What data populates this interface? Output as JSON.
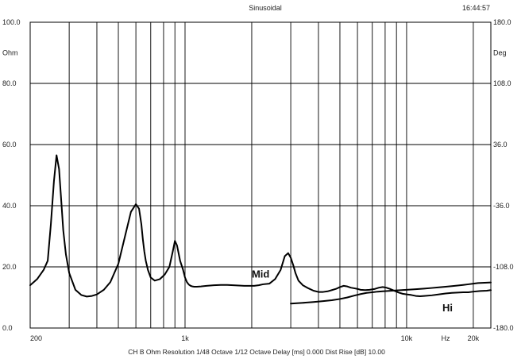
{
  "header": {
    "title": "Sinusoidal",
    "time": "16:44:57"
  },
  "footer": {
    "info": "CH B  Ohm  Resolution 1/48 Octave   1/12 Octave   Delay [ms] 0.000   Dist Rise [dB] 10.00"
  },
  "chart_data": {
    "type": "line",
    "title": "Sinusoidal",
    "xscale": "log",
    "xlim": [
      200,
      24000
    ],
    "ylim": [
      0,
      100
    ],
    "y2lim": [
      -180,
      180
    ],
    "ylabel": "Ohm",
    "y2label": "Deg",
    "xunit": "Hz",
    "x_tick_labels": [
      {
        "value": 200,
        "label": "200"
      },
      {
        "value": 1000,
        "label": "1k"
      },
      {
        "value": 10000,
        "label": "10k"
      },
      {
        "value": 15000,
        "label": "Hz"
      },
      {
        "value": 20000,
        "label": "20k"
      }
    ],
    "y_tick_labels": [
      {
        "value": 100,
        "label": "100.0"
      },
      {
        "value": 90,
        "label": "Ohm"
      },
      {
        "value": 80,
        "label": "80.0"
      },
      {
        "value": 60,
        "label": "60.0"
      },
      {
        "value": 40,
        "label": "40.0"
      },
      {
        "value": 20,
        "label": "20.0"
      },
      {
        "value": 0,
        "label": "0.0"
      }
    ],
    "y2_tick_labels": [
      {
        "value": 180,
        "label": "180.0"
      },
      {
        "value": 144,
        "label": "Deg"
      },
      {
        "value": 108,
        "label": "108.0"
      },
      {
        "value": 36,
        "label": "36.0"
      },
      {
        "value": -36,
        "label": "-36.0"
      },
      {
        "value": -108,
        "label": "-108.0"
      },
      {
        "value": -180,
        "label": "-180.0"
      }
    ],
    "x_gridlines": [
      200,
      300,
      400,
      500,
      600,
      700,
      800,
      900,
      1000,
      2000,
      3000,
      4000,
      5000,
      6000,
      7000,
      8000,
      9000,
      10000,
      20000
    ],
    "y_gridlines": [
      0,
      20,
      40,
      60,
      80,
      100
    ],
    "grid": true,
    "annotations": [
      {
        "text": "Mid",
        "x": 2000,
        "y": 16.5
      },
      {
        "text": "Hi",
        "x": 14500,
        "y": 5.5
      }
    ],
    "series": [
      {
        "name": "Mid",
        "x": [
          200,
          215,
          230,
          240,
          248,
          256,
          263,
          270,
          276,
          282,
          290,
          300,
          320,
          340,
          360,
          380,
          400,
          430,
          460,
          500,
          540,
          570,
          600,
          620,
          635,
          645,
          655,
          665,
          680,
          700,
          730,
          770,
          810,
          850,
          880,
          900,
          920,
          950,
          980,
          1000,
          1020,
          1040,
          1060,
          1080,
          1100,
          1130,
          1180,
          1250,
          1350,
          1450,
          1550,
          1650,
          1750,
          1850,
          1950,
          2050,
          2150,
          2250,
          2400,
          2550,
          2700,
          2820,
          2920,
          3000,
          3080,
          3150,
          3250,
          3400,
          3600,
          3800,
          4000,
          4200,
          4400,
          4600,
          4800,
          5000,
          5200,
          5400,
          5600,
          5800,
          6000,
          6200,
          6500,
          6800,
          7200,
          7500,
          7800,
          8100,
          8400,
          8800,
          9200,
          9600,
          10000,
          10500,
          11000,
          11500,
          12000,
          13000,
          14000,
          15000,
          16000,
          17000,
          18000,
          19000,
          20000,
          21500,
          23000,
          24000
        ],
        "y": [
          14,
          16,
          19,
          22,
          34,
          48,
          56.5,
          52,
          42,
          32,
          24,
          18,
          12.5,
          10.8,
          10.3,
          10.5,
          11,
          12.5,
          15,
          21,
          31,
          38,
          40.5,
          39,
          34,
          29,
          25,
          22,
          19,
          16.5,
          15.5,
          16,
          17.5,
          20,
          25,
          28.5,
          27,
          22,
          19,
          16.5,
          15,
          14.2,
          13.8,
          13.6,
          13.5,
          13.5,
          13.6,
          13.8,
          14,
          14.1,
          14.1,
          14,
          13.9,
          13.8,
          13.8,
          13.8,
          14,
          14.3,
          14.5,
          16,
          19,
          23.5,
          24.5,
          23,
          20.5,
          18,
          15.5,
          14,
          13,
          12.2,
          11.8,
          11.8,
          12,
          12.4,
          12.8,
          13.4,
          13.8,
          13.6,
          13.2,
          13,
          12.8,
          12.5,
          12.4,
          12.5,
          12.8,
          13.2,
          13.4,
          13.2,
          12.8,
          12.2,
          11.6,
          11.2,
          11,
          10.8,
          10.5,
          10.4,
          10.5,
          10.7,
          11,
          11.3,
          11.5,
          11.6,
          11.7,
          11.7,
          11.9,
          12.1,
          12.2,
          12.4
        ]
      },
      {
        "name": "Hi",
        "x": [
          3000,
          3200,
          3500,
          3800,
          4200,
          4600,
          5000,
          5400,
          5800,
          6200,
          6600,
          7000,
          7400,
          7800,
          8200,
          8600,
          9000,
          9500,
          10000,
          11000,
          12000,
          13000,
          14000,
          15000,
          16000,
          17000,
          18000,
          19000,
          20000,
          21000,
          22500,
          24000
        ],
        "y": [
          8,
          8.1,
          8.3,
          8.5,
          8.8,
          9.1,
          9.5,
          10,
          10.6,
          11.1,
          11.5,
          11.7,
          11.9,
          12,
          12.1,
          12.2,
          12.3,
          12.4,
          12.5,
          12.7,
          12.9,
          13.1,
          13.3,
          13.5,
          13.7,
          13.9,
          14.1,
          14.3,
          14.5,
          14.7,
          14.8,
          14.9
        ]
      }
    ]
  }
}
